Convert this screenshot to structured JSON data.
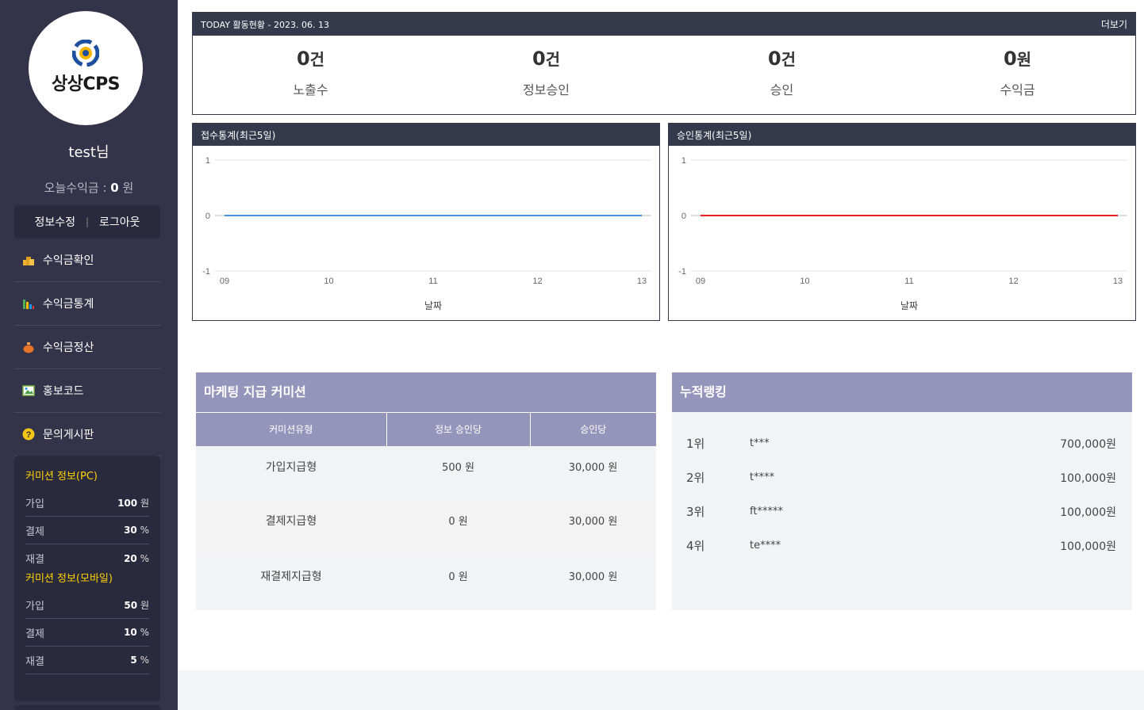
{
  "sidebar": {
    "logo_text": "상상CPS",
    "user_name": "test님",
    "today_earn_label": "오늘수익금 :",
    "today_earn_value": "0",
    "today_earn_unit": "원",
    "edit_label": "정보수정",
    "divider": "|",
    "logout_label": "로그아웃",
    "menu": [
      {
        "label": "수익금확인",
        "icon": "coins-icon"
      },
      {
        "label": "수익금통계",
        "icon": "bar-chart-icon"
      },
      {
        "label": "수익금정산",
        "icon": "money-bag-icon"
      },
      {
        "label": "홍보코드",
        "icon": "image-icon"
      },
      {
        "label": "문의게시판",
        "icon": "question-icon"
      }
    ],
    "commission_pc": {
      "title": "커미션 정보(PC)",
      "rows": [
        {
          "label": "가입",
          "value": "100",
          "unit": "원"
        },
        {
          "label": "결제",
          "value": "30",
          "unit": "%"
        },
        {
          "label": "재결",
          "value": "20",
          "unit": "%"
        }
      ]
    },
    "commission_mobile": {
      "title": "커미션 정보(모바일)",
      "rows": [
        {
          "label": "가입",
          "value": "50",
          "unit": "원"
        },
        {
          "label": "결제",
          "value": "10",
          "unit": "%"
        },
        {
          "label": "재결",
          "value": "5",
          "unit": "%"
        }
      ]
    }
  },
  "today": {
    "title": "TODAY 활동현황 - 2023. 06. 13",
    "more": "더보기",
    "stats": [
      {
        "value": "0",
        "unit": "건",
        "label": "노출수"
      },
      {
        "value": "0",
        "unit": "건",
        "label": "정보승인"
      },
      {
        "value": "0",
        "unit": "건",
        "label": "승인"
      },
      {
        "value": "0",
        "unit": "원",
        "label": "수익금"
      }
    ]
  },
  "charts": {
    "left_title": "접수통계(최근5일)",
    "right_title": "승인통계(최근5일)"
  },
  "chart_data": [
    {
      "type": "line",
      "title": "접수통계(최근5일)",
      "xlabel": "날짜",
      "ylabel": "",
      "categories": [
        "09",
        "10",
        "11",
        "12",
        "13"
      ],
      "series": [
        {
          "values": [
            0,
            0,
            0,
            0,
            0
          ],
          "color": "#4a90e8"
        }
      ],
      "yticks": [
        "1",
        "0",
        "-1"
      ],
      "ylim": [
        -1,
        1
      ],
      "grid": true
    },
    {
      "type": "line",
      "title": "승인통계(최근5일)",
      "xlabel": "날짜",
      "ylabel": "",
      "categories": [
        "09",
        "10",
        "11",
        "12",
        "13"
      ],
      "series": [
        {
          "values": [
            0,
            0,
            0,
            0,
            0
          ],
          "color": "#e81e1e"
        }
      ],
      "yticks": [
        "1",
        "0",
        "-1"
      ],
      "ylim": [
        -1,
        1
      ],
      "grid": true
    }
  ],
  "marketing": {
    "title": "마케팅 지급 커미션",
    "headers": [
      "커미션유형",
      "정보 승인당",
      "승인당"
    ],
    "rows": [
      [
        "가입지급형",
        "500 원",
        "30,000 원"
      ],
      [
        "결제지급형",
        "0 원",
        "30,000 원"
      ],
      [
        "재결제지급형",
        "0 원",
        "30,000 원"
      ]
    ]
  },
  "ranking": {
    "title": "누적랭킹",
    "rows": [
      {
        "rank": "1위",
        "name": "t***",
        "amount": "700,000원"
      },
      {
        "rank": "2위",
        "name": "t****",
        "amount": "100,000원"
      },
      {
        "rank": "3위",
        "name": "ft*****",
        "amount": "100,000원"
      },
      {
        "rank": "4위",
        "name": "te****",
        "amount": "100,000원"
      }
    ]
  }
}
